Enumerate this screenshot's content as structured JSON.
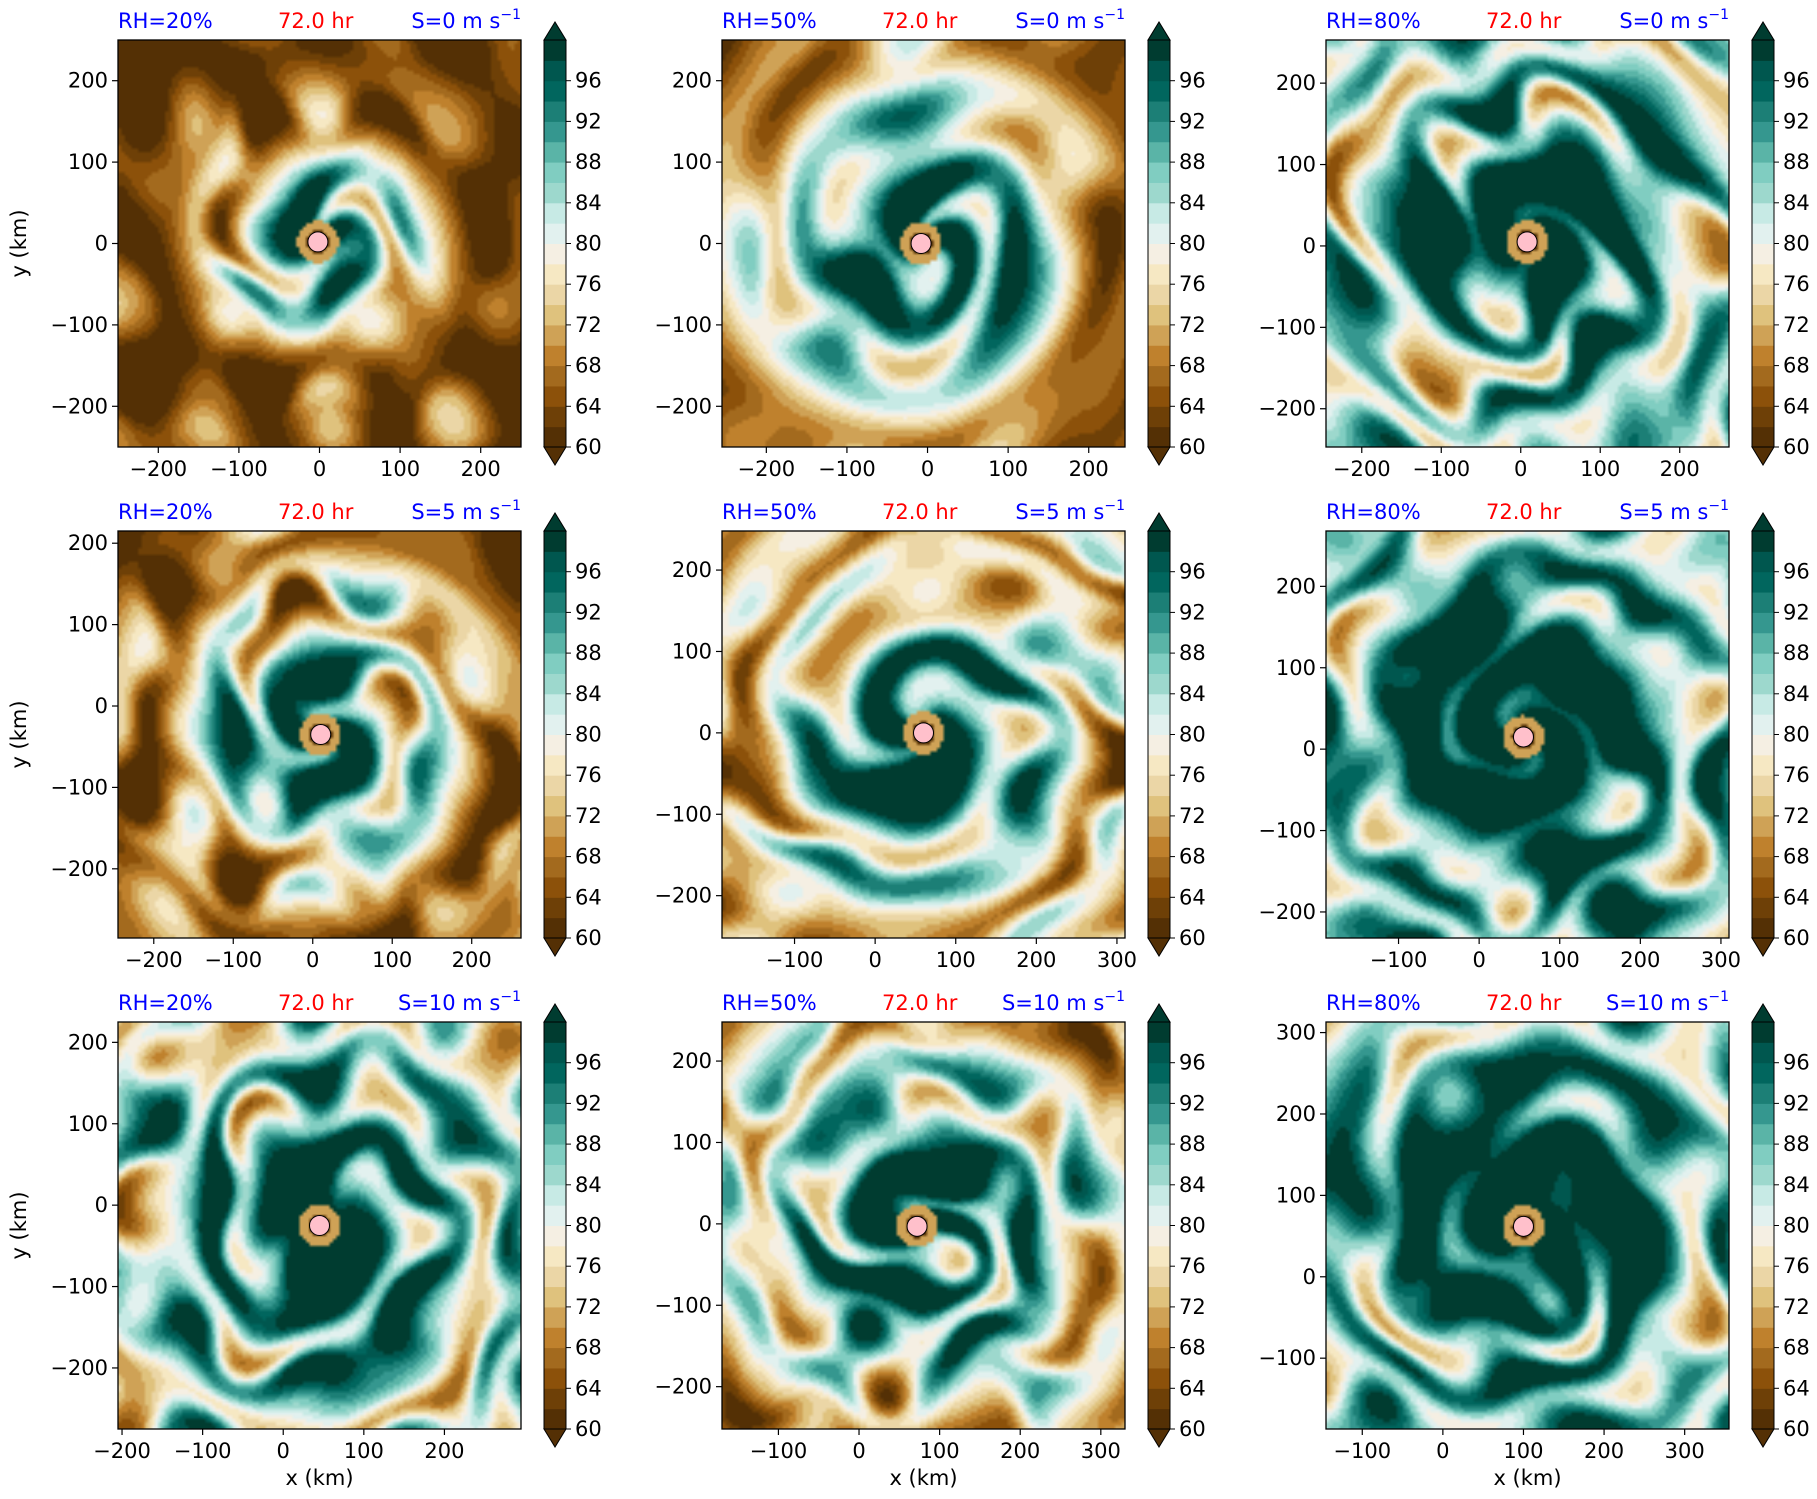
{
  "chart_data": [
    {
      "type": "heatmap",
      "title_left": "RH=20%",
      "title_mid": "72.0 hr",
      "title_right_prefix": "S=0 m s",
      "title_right_sup": "−1",
      "ylabel": "y (km)",
      "xlabel": "",
      "xlim": [
        -250,
        250
      ],
      "ylim": [
        -250,
        250
      ],
      "xticks": [
        -200,
        -100,
        0,
        100,
        200
      ],
      "yticks": [
        -200,
        -100,
        0,
        100,
        200
      ],
      "center": [
        -2,
        2
      ],
      "core_radius": 110,
      "spiral_extent": 150,
      "env_level": 0.05,
      "clim": [
        60,
        100
      ],
      "cbar_ticks": [
        60,
        64,
        68,
        72,
        76,
        80,
        84,
        88,
        92,
        96
      ]
    },
    {
      "type": "heatmap",
      "title_left": "RH=50%",
      "title_mid": "72.0 hr",
      "title_right_prefix": "S=0 m s",
      "title_right_sup": "−1",
      "ylabel": "",
      "xlabel": "",
      "xlim": [
        -255,
        245
      ],
      "ylim": [
        -250,
        250
      ],
      "xticks": [
        -200,
        -100,
        0,
        100,
        200
      ],
      "yticks": [
        -200,
        -100,
        0,
        100,
        200
      ],
      "center": [
        -8,
        0
      ],
      "core_radius": 170,
      "spiral_extent": 220,
      "env_level": 0.1,
      "clim": [
        60,
        100
      ],
      "cbar_ticks": [
        60,
        64,
        68,
        72,
        76,
        80,
        84,
        88,
        92,
        96
      ]
    },
    {
      "type": "heatmap",
      "title_left": "RH=80%",
      "title_mid": "72.0 hr",
      "title_right_prefix": "S=0 m s",
      "title_right_sup": "−1",
      "ylabel": "",
      "xlabel": "",
      "xlim": [
        -245,
        262
      ],
      "ylim": [
        -247,
        253
      ],
      "xticks": [
        -200,
        -100,
        0,
        100,
        200
      ],
      "yticks": [
        -200,
        -100,
        0,
        100,
        200
      ],
      "center": [
        8,
        5
      ],
      "core_radius": 110,
      "spiral_extent": 400,
      "env_level": 0.38,
      "clim": [
        60,
        100
      ],
      "cbar_ticks": [
        60,
        64,
        68,
        72,
        76,
        80,
        84,
        88,
        92,
        96
      ]
    },
    {
      "type": "heatmap",
      "title_left": "RH=20%",
      "title_mid": "72.0 hr",
      "title_right_prefix": "S=5 m s",
      "title_right_sup": "−1",
      "ylabel": "y (km)",
      "xlabel": "",
      "xlim": [
        -245,
        262
      ],
      "ylim": [
        -285,
        215
      ],
      "xticks": [
        -200,
        -100,
        0,
        100,
        200
      ],
      "yticks": [
        -200,
        -100,
        0,
        100,
        200
      ],
      "center": [
        10,
        -35
      ],
      "core_radius": 130,
      "spiral_extent": 250,
      "env_level": 0.08,
      "clim": [
        60,
        100
      ],
      "cbar_ticks": [
        60,
        64,
        68,
        72,
        76,
        80,
        84,
        88,
        92,
        96
      ]
    },
    {
      "type": "heatmap",
      "title_left": "RH=50%",
      "title_mid": "72.0 hr",
      "title_right_prefix": "S=5 m s",
      "title_right_sup": "−1",
      "ylabel": "",
      "xlabel": "",
      "xlim": [
        -190,
        310
      ],
      "ylim": [
        -252,
        248
      ],
      "xticks": [
        -100,
        0,
        100,
        200,
        300
      ],
      "yticks": [
        -200,
        -100,
        0,
        100,
        200
      ],
      "center": [
        60,
        0
      ],
      "core_radius": 160,
      "spiral_extent": 320,
      "env_level": 0.15,
      "clim": [
        60,
        100
      ],
      "cbar_ticks": [
        60,
        64,
        68,
        72,
        76,
        80,
        84,
        88,
        92,
        96
      ]
    },
    {
      "type": "heatmap",
      "title_left": "RH=80%",
      "title_mid": "72.0 hr",
      "title_right_prefix": "S=5 m s",
      "title_right_sup": "−1",
      "ylabel": "",
      "xlabel": "",
      "xlim": [
        -190,
        310
      ],
      "ylim": [
        -232,
        268
      ],
      "xticks": [
        -100,
        0,
        100,
        200,
        300
      ],
      "yticks": [
        -200,
        -100,
        0,
        100,
        200
      ],
      "center": [
        55,
        15
      ],
      "core_radius": 150,
      "spiral_extent": 400,
      "env_level": 0.42,
      "clim": [
        60,
        100
      ],
      "cbar_ticks": [
        60,
        64,
        68,
        72,
        76,
        80,
        84,
        88,
        92,
        96
      ]
    },
    {
      "type": "heatmap",
      "title_left": "RH=20%",
      "title_mid": "72.0 hr",
      "title_right_prefix": "S=10 m s",
      "title_right_sup": "−1",
      "ylabel": "y (km)",
      "xlabel": "x (km)",
      "xlim": [
        -205,
        295
      ],
      "ylim": [
        -275,
        225
      ],
      "xticks": [
        -200,
        -100,
        0,
        100,
        200
      ],
      "yticks": [
        -200,
        -100,
        0,
        100,
        200
      ],
      "center": [
        45,
        -25
      ],
      "core_radius": 140,
      "spiral_extent": 400,
      "env_level": 0.3,
      "clim": [
        60,
        100
      ],
      "cbar_ticks": [
        60,
        64,
        68,
        72,
        76,
        80,
        84,
        88,
        92,
        96
      ]
    },
    {
      "type": "heatmap",
      "title_left": "RH=50%",
      "title_mid": "72.0 hr",
      "title_right_prefix": "S=10 m s",
      "title_right_sup": "−1",
      "ylabel": "",
      "xlabel": "x (km)",
      "xlim": [
        -170,
        330
      ],
      "ylim": [
        -252,
        248
      ],
      "xticks": [
        -100,
        0,
        100,
        200,
        300
      ],
      "yticks": [
        -200,
        -100,
        0,
        100,
        200
      ],
      "center": [
        72,
        -3
      ],
      "core_radius": 160,
      "spiral_extent": 320,
      "env_level": 0.18,
      "clim": [
        60,
        100
      ],
      "cbar_ticks": [
        60,
        64,
        68,
        72,
        76,
        80,
        84,
        88,
        92,
        96
      ]
    },
    {
      "type": "heatmap",
      "title_left": "RH=80%",
      "title_mid": "72.0 hr",
      "title_right_prefix": "S=10 m s",
      "title_right_sup": "−1",
      "ylabel": "",
      "xlabel": "x (km)",
      "xlim": [
        -145,
        355
      ],
      "ylim": [
        -187,
        313
      ],
      "xticks": [
        -100,
        0,
        100,
        200,
        300
      ],
      "yticks": [
        -100,
        0,
        100,
        200,
        300
      ],
      "center": [
        100,
        62
      ],
      "core_radius": 170,
      "spiral_extent": 400,
      "env_level": 0.35,
      "clim": [
        60,
        100
      ],
      "cbar_ticks": [
        60,
        64,
        68,
        72,
        76,
        80,
        84,
        88,
        92,
        96
      ]
    }
  ],
  "colors": {
    "colormap": [
      "#543005",
      "#6e4007",
      "#8c510a",
      "#a36a1e",
      "#bf812d",
      "#cfa256",
      "#dfc27d",
      "#ebd6a6",
      "#f6e8c3",
      "#f5efe3",
      "#e2f1ef",
      "#c7eae5",
      "#9dd8cd",
      "#80cdc1",
      "#5ab4a7",
      "#35978f",
      "#1c7f76",
      "#01665e",
      "#00574f",
      "#003c30"
    ],
    "center_marker_fill": "#ffc0cb",
    "title_left": "#0000ff",
    "title_mid": "#ff0000",
    "title_right": "#0000ff"
  }
}
